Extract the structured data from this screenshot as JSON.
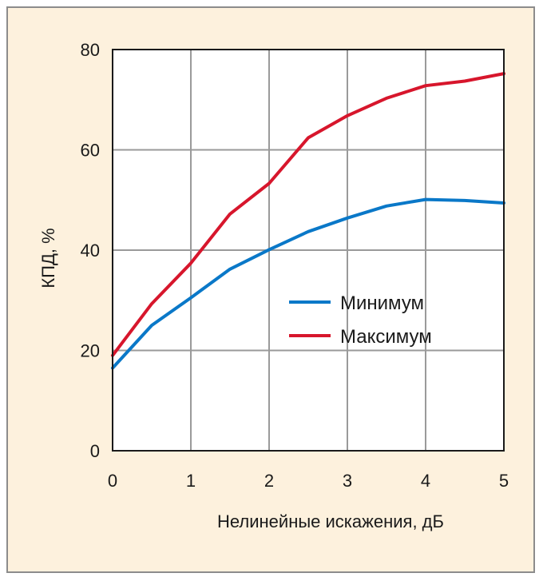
{
  "chart_data": {
    "type": "line",
    "xlabel": "Нелинейные искажения, дБ",
    "ylabel": "КПД, %",
    "xlim": [
      0,
      5
    ],
    "ylim": [
      0,
      80
    ],
    "xticks": [
      0,
      1,
      2,
      3,
      4,
      5
    ],
    "yticks": [
      0,
      20,
      40,
      60,
      80
    ],
    "grid": true,
    "legend_position": "center-right",
    "series": [
      {
        "name": "Минимум",
        "color": "#0a78c8",
        "x": [
          0,
          0.5,
          1,
          1.5,
          2,
          2.5,
          3,
          3.5,
          4,
          4.5,
          5
        ],
        "y": [
          16.5,
          25,
          30.5,
          36.2,
          40.1,
          43.7,
          46.4,
          48.8,
          50.1,
          49.9,
          49.4
        ]
      },
      {
        "name": "Максимум",
        "color": "#d7162c",
        "x": [
          0,
          0.5,
          1,
          1.5,
          2,
          2.5,
          3,
          3.5,
          4,
          4.5,
          5
        ],
        "y": [
          19,
          29.3,
          37.4,
          47.2,
          53.3,
          62.4,
          66.8,
          70.3,
          72.8,
          73.7,
          75.2
        ]
      }
    ]
  }
}
